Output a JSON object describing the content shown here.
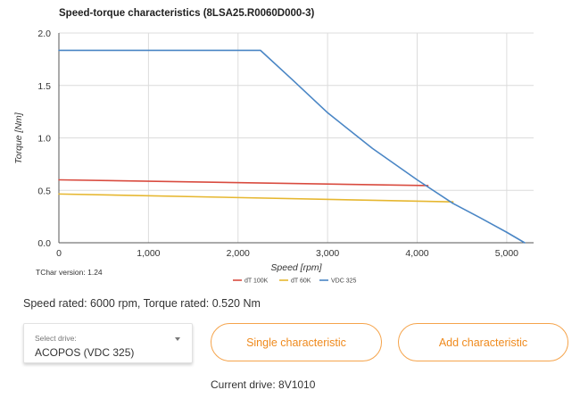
{
  "chart_data": {
    "type": "line",
    "title": "Speed-torque characteristics (8LSA25.R0060D000-3)",
    "xlabel": "Speed [rpm]",
    "ylabel": "Torque [Nm]",
    "xlim": [
      0,
      5300
    ],
    "ylim": [
      0,
      2.0
    ],
    "xticks": [
      0,
      1000,
      2000,
      3000,
      4000,
      5000
    ],
    "xtick_labels": [
      "0",
      "1,000",
      "2,000",
      "3,000",
      "4,000",
      "5,000"
    ],
    "yticks": [
      0,
      0.5,
      1.0,
      1.5,
      2.0
    ],
    "ytick_labels": [
      "0.0",
      "0.5",
      "1.0",
      "1.5",
      "2.0"
    ],
    "grid": true,
    "legend_position": "bottom-center",
    "series": [
      {
        "name": "dT 100K",
        "color": "#d94b3f",
        "x": [
          0,
          4120
        ],
        "y": [
          0.6,
          0.545
        ]
      },
      {
        "name": "dT 60K",
        "color": "#e6b730",
        "x": [
          0,
          4400
        ],
        "y": [
          0.465,
          0.39
        ]
      },
      {
        "name": "VDC 325",
        "color": "#4a86c5",
        "x": [
          0,
          2200,
          2250,
          2600,
          3000,
          3500,
          4000,
          4400,
          4700,
          5000,
          5200
        ],
        "y": [
          1.835,
          1.835,
          1.835,
          1.56,
          1.24,
          0.9,
          0.6,
          0.375,
          0.24,
          0.1,
          0.0
        ]
      }
    ],
    "annotation": "TChar version: 1.24"
  },
  "info": {
    "rated_text": "Speed rated: 6000 rpm, Torque rated: 0.520 Nm",
    "current_drive": "Current drive: 8V1010"
  },
  "select": {
    "label": "Select drive:",
    "value": "ACOPOS (VDC 325)"
  },
  "buttons": {
    "single": "Single characteristic",
    "add": "Add characteristic"
  },
  "colors": {
    "accent": "#ef8a1d",
    "accent_border": "#f5a44c"
  }
}
